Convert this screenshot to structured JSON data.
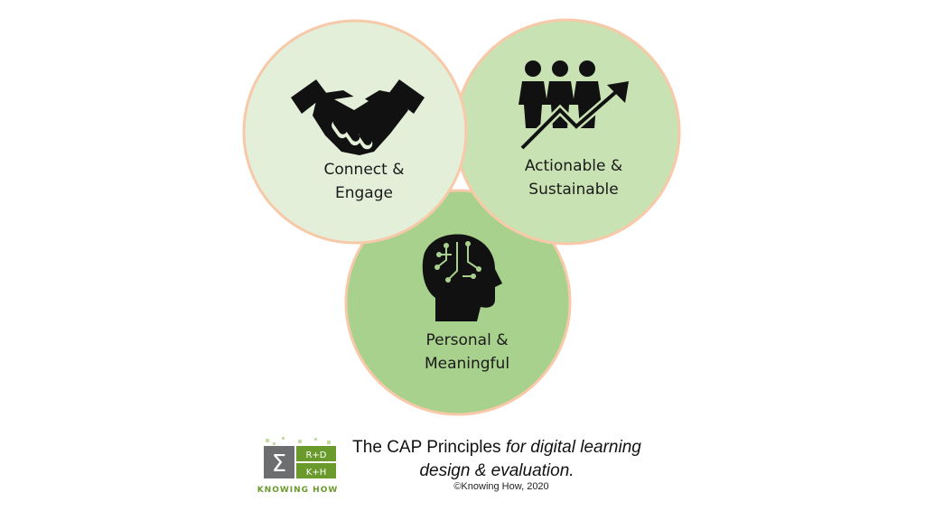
{
  "circles": [
    {
      "label_line1": "Connect &",
      "label_line2": "Engage",
      "icon": "handshake-icon",
      "fill": "#e3efd9"
    },
    {
      "label_line1": "Actionable &",
      "label_line2": "Sustainable",
      "icon": "people-growth-icon",
      "fill": "#c8e2b4"
    },
    {
      "label_line1": "Personal &",
      "label_line2": "Meaningful",
      "icon": "head-circuit-icon",
      "fill": "#a8d18d"
    }
  ],
  "colors": {
    "ring": "#f7c9a8",
    "icon": "#111111",
    "logo_green": "#6a9a2c",
    "logo_gray": "#6d6e70"
  },
  "caption": {
    "plain": "The CAP Principles ",
    "italic": "for digital learning design & evaluation."
  },
  "copyright": "©Knowing How, 2020",
  "logo": {
    "symbol": "Σ",
    "top_right": "R+D",
    "bottom_right": "K+H",
    "text": "KNOWING HOW"
  }
}
